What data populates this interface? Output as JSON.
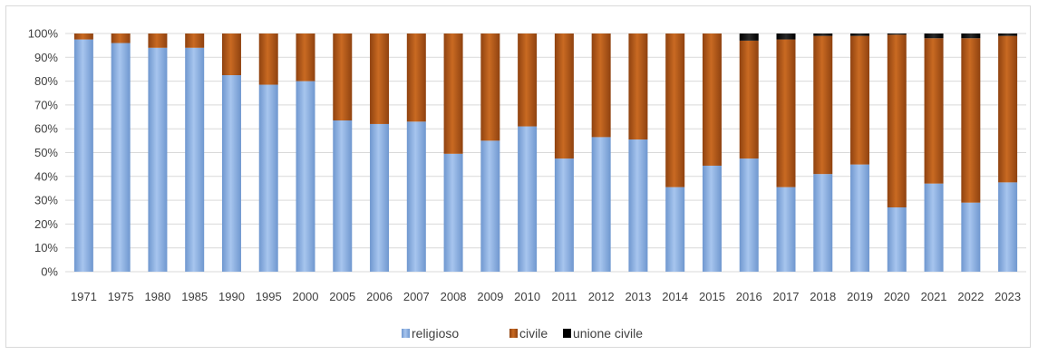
{
  "chart_data": {
    "type": "bar",
    "stacked": true,
    "percent_stacked": true,
    "categories": [
      "1971",
      "1975",
      "1980",
      "1985",
      "1990",
      "1995",
      "2000",
      "2005",
      "2006",
      "2007",
      "2008",
      "2009",
      "2010",
      "2011",
      "2012",
      "2013",
      "2014",
      "2015",
      "2016",
      "2017",
      "2018",
      "2019",
      "2020",
      "2021",
      "2022",
      "2023"
    ],
    "series": [
      {
        "name": "religioso",
        "color": "#8fb4e3",
        "values": [
          97.5,
          96,
          94,
          94,
          82.5,
          78.5,
          80,
          63.5,
          62,
          63,
          49.5,
          55,
          61,
          47.5,
          56.5,
          55.5,
          35.5,
          44.5,
          47.5,
          35.5,
          41,
          45,
          27,
          37,
          29,
          37.5
        ]
      },
      {
        "name": "civile",
        "color": "#b65a16",
        "values": [
          2.5,
          4,
          6,
          6,
          17.5,
          21.5,
          20,
          36.5,
          38,
          37,
          50.5,
          45,
          39,
          52.5,
          43.5,
          44.5,
          64.5,
          55.5,
          49.5,
          62,
          58,
          54,
          72.5,
          61,
          69,
          61.5
        ]
      },
      {
        "name": "unione civile",
        "color": "#000000",
        "values": [
          0,
          0,
          0,
          0,
          0,
          0,
          0,
          0,
          0,
          0,
          0,
          0,
          0,
          0,
          0,
          0,
          0,
          0,
          3,
          2.5,
          1,
          1,
          0.5,
          2,
          2,
          1
        ]
      }
    ],
    "y_ticks": [
      "0%",
      "10%",
      "20%",
      "30%",
      "40%",
      "50%",
      "60%",
      "70%",
      "80%",
      "90%",
      "100%"
    ],
    "ylim": [
      0,
      100
    ],
    "grid": true,
    "legend_position": "bottom",
    "title": "",
    "xlabel": "",
    "ylabel": ""
  }
}
